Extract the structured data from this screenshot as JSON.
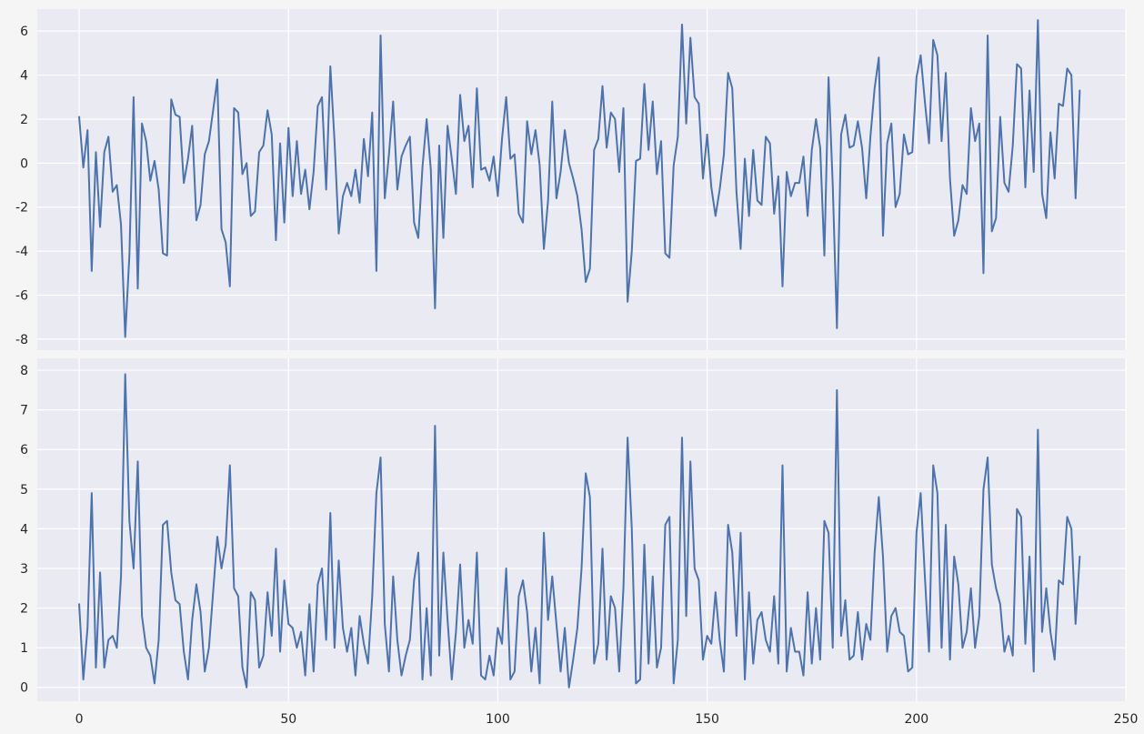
{
  "chart_data": [
    {
      "type": "line",
      "title": "",
      "xlabel": "",
      "ylabel": "",
      "xlim": [
        -10,
        250
      ],
      "ylim": [
        -8.5,
        7.0
      ],
      "grid": true,
      "background": "#eaeaf2",
      "line_color": "#4c72b0",
      "xticks": [
        0,
        50,
        100,
        150,
        200,
        250
      ],
      "yticks": [
        -8,
        -6,
        -4,
        -2,
        0,
        2,
        4,
        6
      ],
      "series": [
        {
          "x": [
            0,
            1,
            2,
            3,
            4,
            5,
            6,
            7,
            8,
            9,
            10,
            11,
            12,
            13,
            14,
            15,
            16,
            17,
            18,
            19,
            20,
            21,
            22,
            23,
            24,
            25,
            26,
            27,
            28,
            29,
            30,
            31,
            32,
            33,
            34,
            35,
            36,
            37,
            38,
            39,
            40,
            41,
            42,
            43,
            44,
            45,
            46,
            47,
            48,
            49,
            50,
            51,
            52,
            53,
            54,
            55,
            56,
            57,
            58,
            59,
            60,
            61,
            62,
            63,
            64,
            65,
            66,
            67,
            68,
            69,
            70,
            71,
            72,
            73,
            74,
            75,
            76,
            77,
            78,
            79,
            80,
            81,
            82,
            83,
            84,
            85,
            86,
            87,
            88,
            89,
            90,
            91,
            92,
            93,
            94,
            95,
            96,
            97,
            98,
            99,
            100,
            101,
            102,
            103,
            104,
            105,
            106,
            107,
            108,
            109,
            110,
            111,
            112,
            113,
            114,
            115,
            116,
            117,
            118,
            119,
            120,
            121,
            122,
            123,
            124,
            125,
            126,
            127,
            128,
            129,
            130,
            131,
            132,
            133,
            134,
            135,
            136,
            137,
            138,
            139,
            140,
            141,
            142,
            143,
            144,
            145,
            146,
            147,
            148,
            149,
            150,
            151,
            152,
            153,
            154,
            155,
            156,
            157,
            158,
            159,
            160,
            161,
            162,
            163,
            164,
            165,
            166,
            167,
            168,
            169,
            170,
            171,
            172,
            173,
            174,
            175,
            176,
            177,
            178,
            179,
            180,
            181,
            182,
            183,
            184,
            185,
            186,
            187,
            188,
            189,
            190,
            191,
            192,
            193,
            194,
            195,
            196,
            197,
            198,
            199,
            200,
            201,
            202,
            203,
            204,
            205,
            206,
            207,
            208,
            209,
            210,
            211,
            212,
            213,
            214,
            215,
            216,
            217,
            218,
            219,
            220,
            221,
            222,
            223,
            224,
            225,
            226,
            227,
            228,
            229,
            230,
            231,
            232,
            233,
            234,
            235,
            236,
            237,
            238,
            239
          ],
          "values": [
            2.1,
            -0.2,
            1.5,
            -4.9,
            0.5,
            -2.9,
            0.5,
            1.2,
            -1.3,
            -1.0,
            -2.8,
            -7.9,
            -4.2,
            3.0,
            -5.7,
            1.8,
            1.0,
            -0.8,
            0.1,
            -1.2,
            -4.1,
            -4.2,
            2.9,
            2.2,
            2.1,
            -0.9,
            0.2,
            1.7,
            -2.6,
            -1.9,
            0.4,
            1.0,
            2.4,
            3.8,
            -3.0,
            -3.6,
            -5.6,
            2.5,
            2.3,
            -0.5,
            0.0,
            -2.4,
            -2.2,
            0.5,
            0.8,
            2.4,
            1.3,
            -3.5,
            0.9,
            -2.7,
            1.6,
            -1.5,
            1.0,
            -1.4,
            -0.3,
            -2.1,
            -0.4,
            2.6,
            3.0,
            -1.2,
            4.4,
            1.0,
            -3.2,
            -1.5,
            -0.9,
            -1.5,
            -0.3,
            -1.8,
            1.1,
            -0.6,
            2.3,
            -4.9,
            5.8,
            -1.6,
            0.4,
            2.8,
            -1.2,
            0.3,
            0.8,
            1.2,
            -2.7,
            -3.4,
            -0.2,
            2.0,
            -0.3,
            -6.6,
            0.8,
            -3.4,
            1.7,
            0.2,
            -1.4,
            3.1,
            1.0,
            1.7,
            -1.1,
            3.4,
            -0.3,
            -0.2,
            -0.8,
            0.3,
            -1.5,
            1.1,
            3.0,
            0.2,
            0.4,
            -2.3,
            -2.7,
            1.9,
            0.4,
            1.5,
            -0.1,
            -3.9,
            -1.7,
            2.8,
            -1.6,
            -0.4,
            1.5,
            0.0,
            -0.7,
            -1.5,
            -3.0,
            -5.4,
            -4.8,
            0.6,
            1.1,
            3.5,
            0.7,
            2.3,
            2.0,
            -0.4,
            2.5,
            -6.3,
            -4.0,
            0.1,
            0.2,
            3.6,
            0.6,
            2.8,
            -0.5,
            1.0,
            -4.1,
            -4.3,
            -0.1,
            1.2,
            6.3,
            1.8,
            5.7,
            3.0,
            2.7,
            -0.7,
            1.3,
            -1.1,
            -2.4,
            -1.2,
            0.4,
            4.1,
            3.4,
            -1.3,
            -3.9,
            0.2,
            -2.4,
            0.6,
            -1.7,
            -1.9,
            1.2,
            0.9,
            -2.3,
            -0.6,
            -5.6,
            -0.4,
            -1.5,
            -0.9,
            -0.9,
            0.3,
            -2.4,
            0.6,
            2.0,
            0.7,
            -4.2,
            3.9,
            -1.0,
            -7.5,
            1.3,
            2.2,
            0.7,
            0.8,
            1.9,
            0.7,
            -1.6,
            1.2,
            3.4,
            4.8,
            -3.3,
            0.9,
            1.8,
            -2.0,
            -1.4,
            1.3,
            0.4,
            0.5,
            3.9,
            4.9,
            2.8,
            0.9,
            5.6,
            4.9,
            1.0,
            4.1,
            -0.7,
            -3.3,
            -2.6,
            -1.0,
            -1.4,
            2.5,
            1.0,
            1.8,
            -5.0,
            5.8,
            -3.1,
            -2.5,
            2.1,
            -0.9,
            -1.3,
            0.8,
            4.5,
            4.3,
            -1.1,
            3.3,
            -0.4,
            6.5,
            -1.4,
            -2.5,
            1.4,
            -0.7,
            2.7,
            2.6,
            4.3,
            4.0,
            -1.6,
            3.3
          ]
        }
      ]
    },
    {
      "type": "line",
      "title": "",
      "xlabel": "",
      "ylabel": "",
      "xlim": [
        -10,
        250
      ],
      "ylim": [
        -0.35,
        8.3
      ],
      "grid": true,
      "background": "#eaeaf2",
      "line_color": "#4c72b0",
      "xticks": [
        0,
        50,
        100,
        150,
        200,
        250
      ],
      "yticks": [
        0,
        1,
        2,
        3,
        4,
        5,
        6,
        7,
        8
      ],
      "series": [
        {
          "x": [
            0,
            1,
            2,
            3,
            4,
            5,
            6,
            7,
            8,
            9,
            10,
            11,
            12,
            13,
            14,
            15,
            16,
            17,
            18,
            19,
            20,
            21,
            22,
            23,
            24,
            25,
            26,
            27,
            28,
            29,
            30,
            31,
            32,
            33,
            34,
            35,
            36,
            37,
            38,
            39,
            40,
            41,
            42,
            43,
            44,
            45,
            46,
            47,
            48,
            49,
            50,
            51,
            52,
            53,
            54,
            55,
            56,
            57,
            58,
            59,
            60,
            61,
            62,
            63,
            64,
            65,
            66,
            67,
            68,
            69,
            70,
            71,
            72,
            73,
            74,
            75,
            76,
            77,
            78,
            79,
            80,
            81,
            82,
            83,
            84,
            85,
            86,
            87,
            88,
            89,
            90,
            91,
            92,
            93,
            94,
            95,
            96,
            97,
            98,
            99,
            100,
            101,
            102,
            103,
            104,
            105,
            106,
            107,
            108,
            109,
            110,
            111,
            112,
            113,
            114,
            115,
            116,
            117,
            118,
            119,
            120,
            121,
            122,
            123,
            124,
            125,
            126,
            127,
            128,
            129,
            130,
            131,
            132,
            133,
            134,
            135,
            136,
            137,
            138,
            139,
            140,
            141,
            142,
            143,
            144,
            145,
            146,
            147,
            148,
            149,
            150,
            151,
            152,
            153,
            154,
            155,
            156,
            157,
            158,
            159,
            160,
            161,
            162,
            163,
            164,
            165,
            166,
            167,
            168,
            169,
            170,
            171,
            172,
            173,
            174,
            175,
            176,
            177,
            178,
            179,
            180,
            181,
            182,
            183,
            184,
            185,
            186,
            187,
            188,
            189,
            190,
            191,
            192,
            193,
            194,
            195,
            196,
            197,
            198,
            199,
            200,
            201,
            202,
            203,
            204,
            205,
            206,
            207,
            208,
            209,
            210,
            211,
            212,
            213,
            214,
            215,
            216,
            217,
            218,
            219,
            220,
            221,
            222,
            223,
            224,
            225,
            226,
            227,
            228,
            229,
            230,
            231,
            232,
            233,
            234,
            235,
            236,
            237,
            238,
            239
          ],
          "values": [
            2.1,
            0.2,
            1.5,
            4.9,
            0.5,
            2.9,
            0.5,
            1.2,
            1.3,
            1.0,
            2.8,
            7.9,
            4.2,
            3.0,
            5.7,
            1.8,
            1.0,
            0.8,
            0.1,
            1.2,
            4.1,
            4.2,
            2.9,
            2.2,
            2.1,
            0.9,
            0.2,
            1.7,
            2.6,
            1.9,
            0.4,
            1.0,
            2.4,
            3.8,
            3.0,
            3.6,
            5.6,
            2.5,
            2.3,
            0.5,
            0.0,
            2.4,
            2.2,
            0.5,
            0.8,
            2.4,
            1.3,
            3.5,
            0.9,
            2.7,
            1.6,
            1.5,
            1.0,
            1.4,
            0.3,
            2.1,
            0.4,
            2.6,
            3.0,
            1.2,
            4.4,
            1.0,
            3.2,
            1.5,
            0.9,
            1.5,
            0.3,
            1.8,
            1.1,
            0.6,
            2.3,
            4.9,
            5.8,
            1.6,
            0.4,
            2.8,
            1.2,
            0.3,
            0.8,
            1.2,
            2.7,
            3.4,
            0.2,
            2.0,
            0.3,
            6.6,
            0.8,
            3.4,
            1.7,
            0.2,
            1.4,
            3.1,
            1.0,
            1.7,
            1.1,
            3.4,
            0.3,
            0.2,
            0.8,
            0.3,
            1.5,
            1.1,
            3.0,
            0.2,
            0.4,
            2.3,
            2.7,
            1.9,
            0.4,
            1.5,
            0.1,
            3.9,
            1.7,
            2.8,
            1.6,
            0.4,
            1.5,
            0.0,
            0.7,
            1.5,
            3.0,
            5.4,
            4.8,
            0.6,
            1.1,
            3.5,
            0.7,
            2.3,
            2.0,
            0.4,
            2.5,
            6.3,
            4.0,
            0.1,
            0.2,
            3.6,
            0.6,
            2.8,
            0.5,
            1.0,
            4.1,
            4.3,
            0.1,
            1.2,
            6.3,
            1.8,
            5.7,
            3.0,
            2.7,
            0.7,
            1.3,
            1.1,
            2.4,
            1.2,
            0.4,
            4.1,
            3.4,
            1.3,
            3.9,
            0.2,
            2.4,
            0.6,
            1.7,
            1.9,
            1.2,
            0.9,
            2.3,
            0.6,
            5.6,
            0.4,
            1.5,
            0.9,
            0.9,
            0.3,
            2.4,
            0.6,
            2.0,
            0.7,
            4.2,
            3.9,
            1.0,
            7.5,
            1.3,
            2.2,
            0.7,
            0.8,
            1.9,
            0.7,
            1.6,
            1.2,
            3.4,
            4.8,
            3.3,
            0.9,
            1.8,
            2.0,
            1.4,
            1.3,
            0.4,
            0.5,
            3.9,
            4.9,
            2.8,
            0.9,
            5.6,
            4.9,
            1.0,
            4.1,
            0.7,
            3.3,
            2.6,
            1.0,
            1.4,
            2.5,
            1.0,
            1.8,
            5.0,
            5.8,
            3.1,
            2.5,
            2.1,
            0.9,
            1.3,
            0.8,
            4.5,
            4.3,
            1.1,
            3.3,
            0.4,
            6.5,
            1.4,
            2.5,
            1.4,
            0.7,
            2.7,
            2.6,
            4.3,
            4.0,
            1.6,
            3.3
          ]
        }
      ]
    }
  ]
}
